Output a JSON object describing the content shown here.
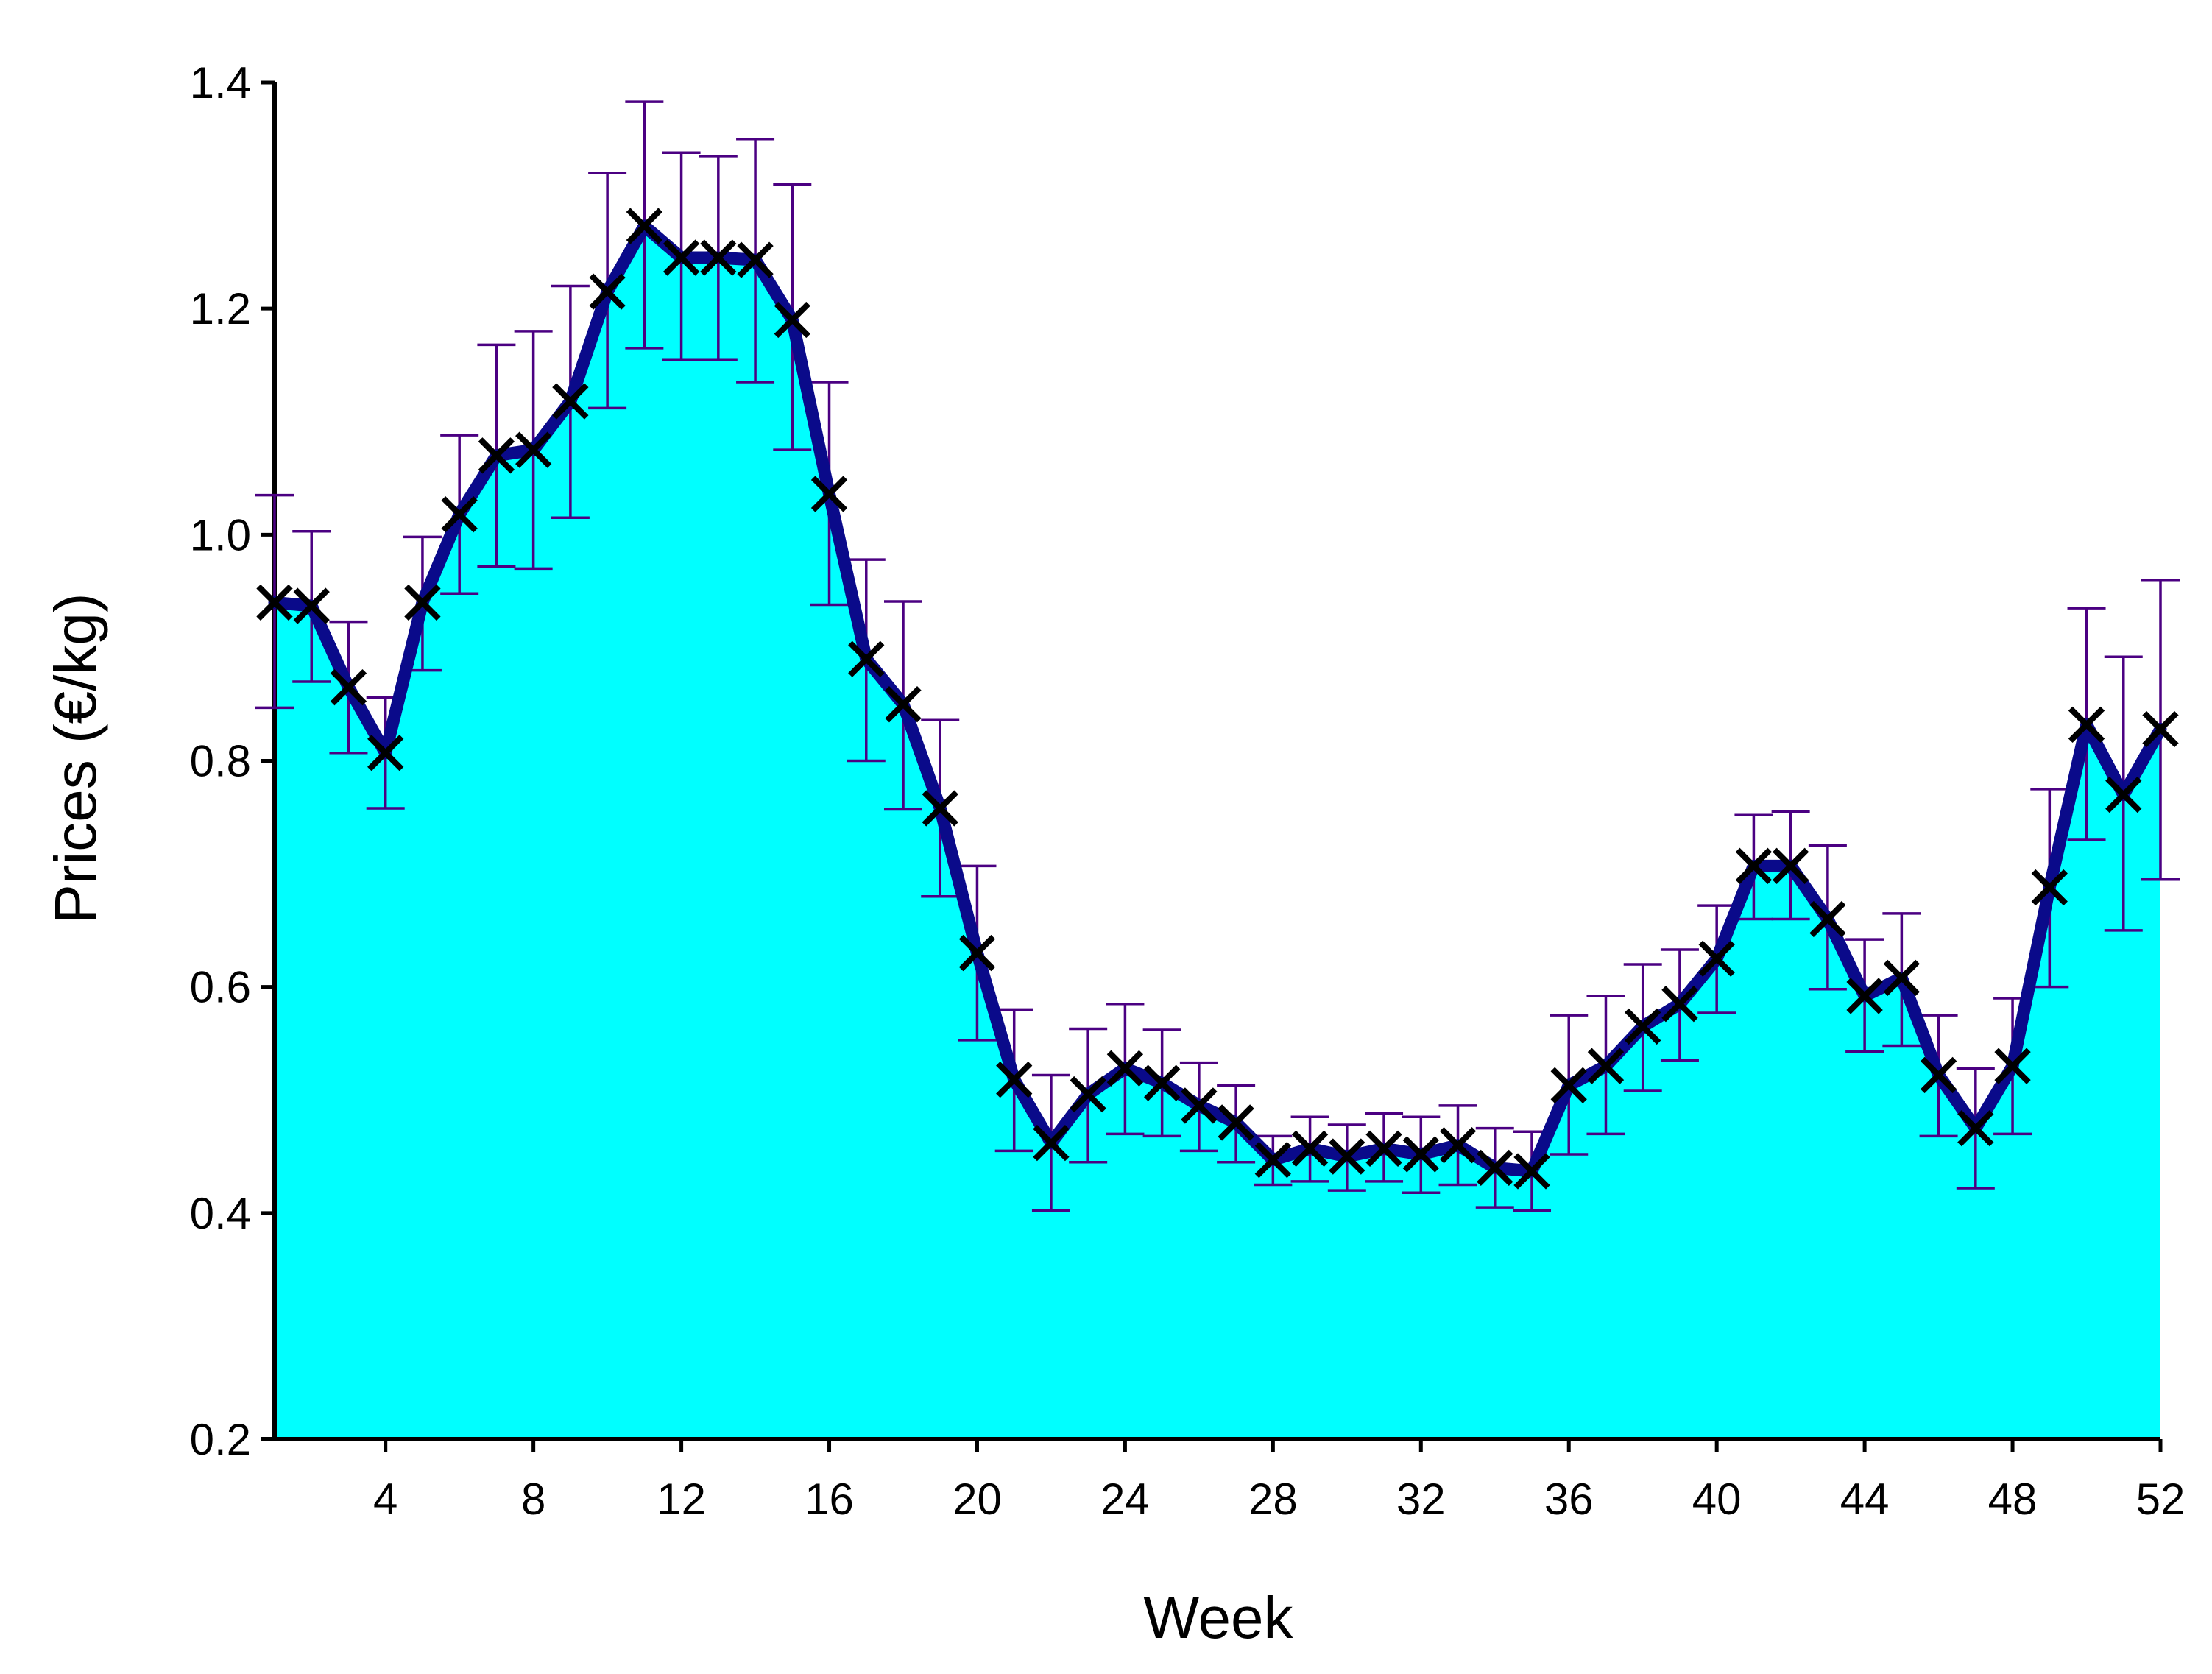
{
  "chart_data": {
    "type": "area",
    "title": "",
    "xlabel": "Week",
    "ylabel": "Prices (€/kg)",
    "xlim": [
      1,
      52
    ],
    "ylim": [
      0.2,
      1.4
    ],
    "x_ticks": [
      4,
      8,
      12,
      16,
      20,
      24,
      28,
      32,
      36,
      40,
      44,
      48,
      52
    ],
    "y_ticks": [
      0.2,
      0.4,
      0.6,
      0.8,
      1.0,
      1.2,
      1.4
    ],
    "y_tick_labels": [
      "0.2",
      "0.4",
      "0.6",
      "0.8",
      "1.0",
      "1.2",
      "1.4"
    ],
    "grid": false,
    "legend": "none",
    "colors": {
      "fill": "#00ffff",
      "line": "#0a0a8a",
      "marker": "#000000",
      "error_bar": "#4b0082"
    },
    "series": [
      {
        "marker": "x",
        "x": [
          1,
          2,
          3,
          4,
          5,
          6,
          7,
          8,
          9,
          10,
          11,
          12,
          13,
          14,
          15,
          16,
          17,
          18,
          19,
          20,
          21,
          22,
          23,
          24,
          25,
          26,
          27,
          28,
          29,
          30,
          31,
          32,
          33,
          34,
          35,
          36,
          37,
          38,
          39,
          40,
          41,
          42,
          43,
          44,
          45,
          46,
          47,
          48,
          49,
          50,
          51,
          52
        ],
        "y": [
          0.94,
          0.937,
          0.865,
          0.807,
          0.94,
          1.018,
          1.07,
          1.075,
          1.118,
          1.215,
          1.273,
          1.245,
          1.245,
          1.243,
          1.19,
          1.036,
          0.89,
          0.85,
          0.758,
          0.63,
          0.518,
          0.462,
          0.505,
          0.528,
          0.515,
          0.495,
          0.48,
          0.447,
          0.457,
          0.45,
          0.457,
          0.452,
          0.46,
          0.44,
          0.437,
          0.513,
          0.53,
          0.565,
          0.585,
          0.625,
          0.707,
          0.707,
          0.66,
          0.592,
          0.608,
          0.522,
          0.475,
          0.53,
          0.688,
          0.832,
          0.77,
          0.828
        ],
        "error_upper": [
          1.035,
          1.003,
          0.923,
          0.856,
          0.998,
          1.088,
          1.168,
          1.18,
          1.22,
          1.32,
          1.383,
          1.338,
          1.335,
          1.35,
          1.31,
          1.135,
          0.978,
          0.941,
          0.836,
          0.707,
          0.58,
          0.522,
          0.563,
          0.585,
          0.562,
          0.533,
          0.513,
          0.468,
          0.485,
          0.478,
          0.488,
          0.485,
          0.495,
          0.475,
          0.472,
          0.575,
          0.592,
          0.62,
          0.633,
          0.672,
          0.752,
          0.755,
          0.725,
          0.642,
          0.665,
          0.575,
          0.528,
          0.59,
          0.775,
          0.935,
          0.892,
          0.96
        ],
        "error_lower": [
          0.847,
          0.87,
          0.807,
          0.758,
          0.88,
          0.948,
          0.972,
          0.97,
          1.015,
          1.112,
          1.165,
          1.155,
          1.155,
          1.135,
          1.075,
          0.938,
          0.8,
          0.757,
          0.68,
          0.553,
          0.455,
          0.402,
          0.445,
          0.47,
          0.468,
          0.455,
          0.445,
          0.425,
          0.428,
          0.42,
          0.428,
          0.418,
          0.425,
          0.405,
          0.402,
          0.452,
          0.47,
          0.508,
          0.535,
          0.577,
          0.66,
          0.66,
          0.598,
          0.543,
          0.548,
          0.468,
          0.422,
          0.47,
          0.6,
          0.73,
          0.65,
          0.695
        ]
      }
    ]
  }
}
